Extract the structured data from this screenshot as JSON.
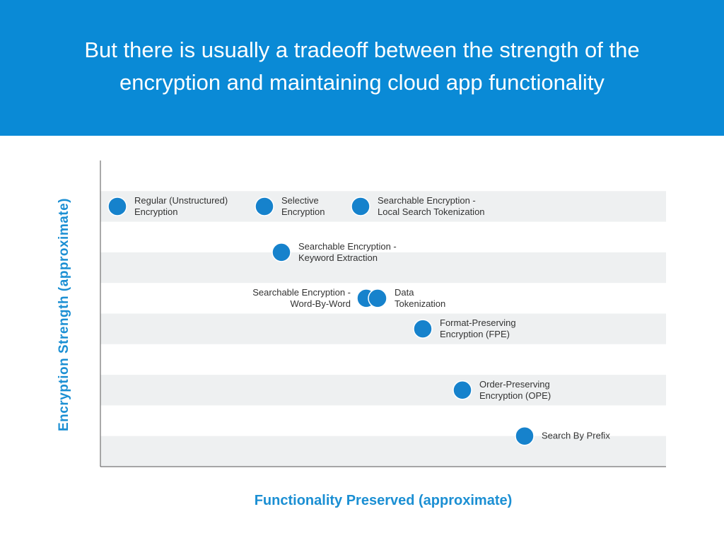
{
  "colors": {
    "header_bg": "#0a8ad6",
    "header_text": "#ffffff",
    "accent": "#1b8fd3",
    "point": "#1682cc",
    "band": "#eef0f1",
    "axis": "#555555",
    "label_text": "#333333"
  },
  "header": {
    "title": "But there is usually a tradeoff between the strength of the\nencryption and maintaining cloud app functionality"
  },
  "chart_data": {
    "type": "scatter",
    "title": "",
    "xlabel": "Functionality Preserved (approximate)",
    "ylabel": "Encryption Strength (approximate)",
    "xlim": [
      0,
      100
    ],
    "ylim": [
      0,
      100
    ],
    "grid": "alternating horizontal bands",
    "points": [
      {
        "name": "Regular (Unstructured) Encryption",
        "label_lines": [
          "Regular (Unstructured)",
          "Encryption"
        ],
        "x": 3,
        "y": 85,
        "label_side": "right"
      },
      {
        "name": "Selective Encryption",
        "label_lines": [
          "Selective",
          "Encryption"
        ],
        "x": 29,
        "y": 85,
        "label_side": "right"
      },
      {
        "name": "Searchable Encryption - Local Search Tokenization",
        "label_lines": [
          "Searchable Encryption -",
          "Local Search Tokenization"
        ],
        "x": 46,
        "y": 85,
        "label_side": "right"
      },
      {
        "name": "Searchable Encryption - Keyword Extraction",
        "label_lines": [
          "Searchable Encryption -",
          "Keyword Extraction"
        ],
        "x": 32,
        "y": 70,
        "label_side": "right"
      },
      {
        "name": "Searchable Encryption - Word-By-Word",
        "label_lines": [
          "Searchable Encryption -",
          "Word-By-Word"
        ],
        "x": 47,
        "y": 55,
        "label_side": "left"
      },
      {
        "name": "Data Tokenization",
        "label_lines": [
          "Data",
          "Tokenization"
        ],
        "x": 49,
        "y": 55,
        "label_side": "right"
      },
      {
        "name": "Format-Preserving Encryption (FPE)",
        "label_lines": [
          "Format-Preserving",
          "Encryption (FPE)"
        ],
        "x": 57,
        "y": 45,
        "label_side": "right"
      },
      {
        "name": "Order-Preserving Encryption (OPE)",
        "label_lines": [
          "Order-Preserving",
          "Encryption (OPE)"
        ],
        "x": 64,
        "y": 25,
        "label_side": "right"
      },
      {
        "name": "Search By Prefix",
        "label_lines": [
          "Search By Prefix"
        ],
        "x": 75,
        "y": 10,
        "label_side": "right"
      }
    ]
  }
}
